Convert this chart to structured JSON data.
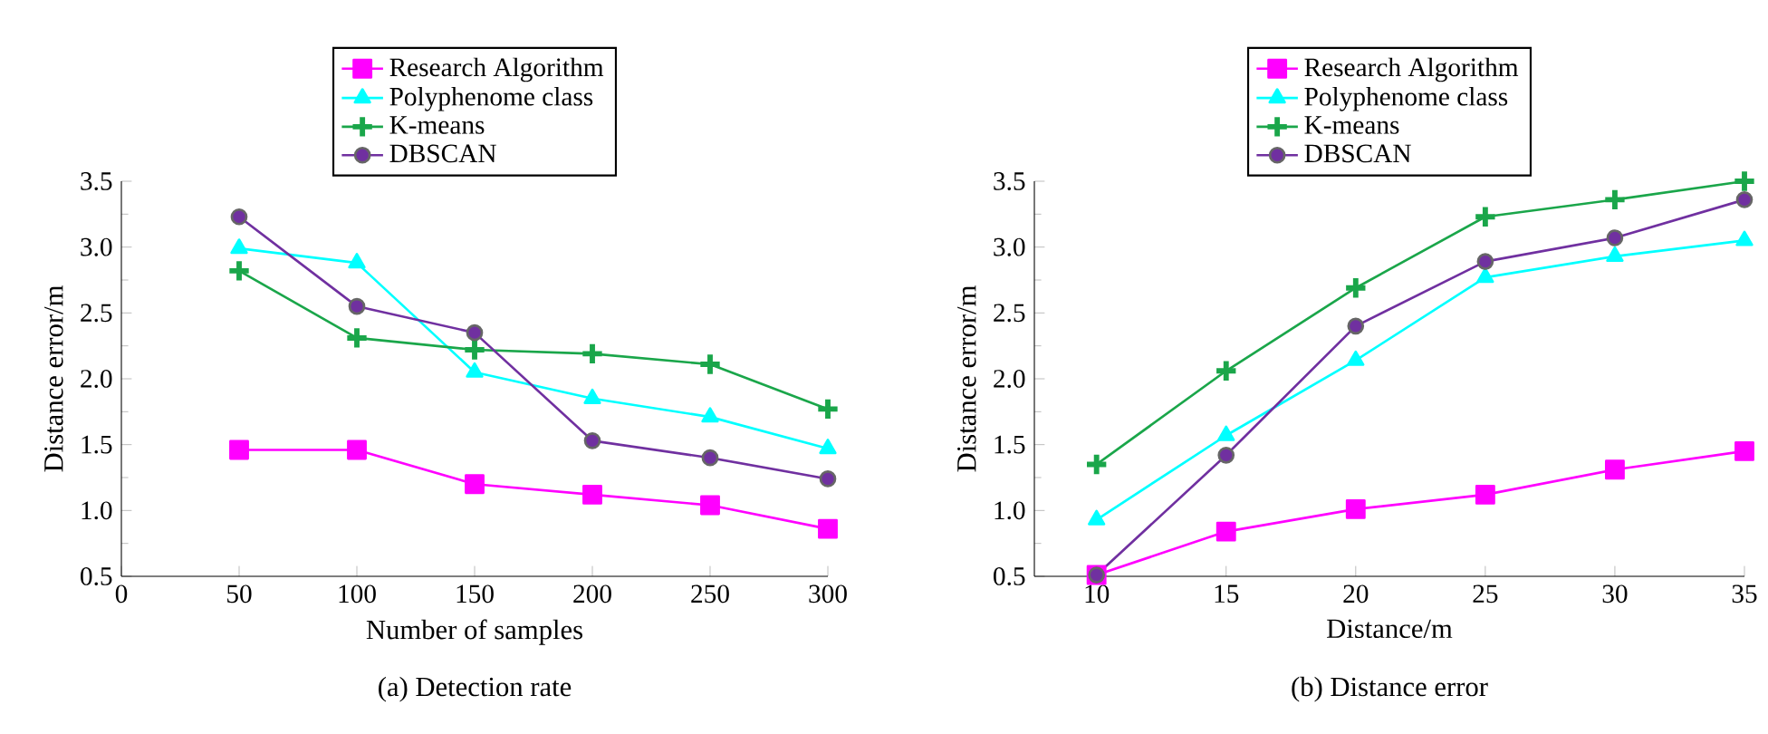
{
  "chart_data": [
    {
      "type": "line",
      "title": "(a) Detection rate",
      "xlabel": "Number of samples",
      "ylabel": "Distance error/m",
      "x": [
        50,
        100,
        150,
        200,
        250,
        300
      ],
      "xlim": [
        0,
        300
      ],
      "xticks": [
        0,
        50,
        100,
        150,
        200,
        250,
        300
      ],
      "ylim": [
        0.5,
        3.5
      ],
      "yticks": [
        0.5,
        {
          "value": 1,
          "label": "1.0"
        },
        1.5,
        {
          "value": 2,
          "label": "2.0"
        },
        2.5,
        {
          "value": 3,
          "label": "3.0"
        },
        3.5
      ],
      "grid": false,
      "legend": "top",
      "series": [
        {
          "name": "Research Algorithm",
          "color": "#ff00ff",
          "marker": "square",
          "values": [
            1.46,
            1.46,
            1.2,
            1.12,
            1.04,
            0.86
          ]
        },
        {
          "name": "Polyphenome class",
          "color": "#00ffff",
          "marker": "triangle",
          "values": [
            2.99,
            2.88,
            2.05,
            1.85,
            1.71,
            1.47
          ]
        },
        {
          "name": "K-means",
          "color": "#1aa64a",
          "marker": "cross",
          "values": [
            2.82,
            2.31,
            2.22,
            2.19,
            2.11,
            1.77
          ]
        },
        {
          "name": "DBSCAN",
          "color": "#7030a0",
          "marker": "circle",
          "values": [
            3.23,
            2.55,
            2.35,
            1.53,
            1.4,
            1.24
          ]
        }
      ]
    },
    {
      "type": "line",
      "title": "(b) Distance error",
      "xlabel": "Distance/m",
      "ylabel": "Distance error/m",
      "x": [
        10,
        15,
        20,
        25,
        30,
        35
      ],
      "xlim": [
        7.6,
        35
      ],
      "xticks": [
        10,
        15,
        20,
        25,
        30,
        35
      ],
      "ylim": [
        0.5,
        3.5
      ],
      "yticks": [
        0.5,
        {
          "value": 1,
          "label": "1.0"
        },
        1.5,
        {
          "value": 2,
          "label": "2.0"
        },
        2.5,
        {
          "value": 3,
          "label": "3.0"
        },
        3.5
      ],
      "grid": false,
      "legend": "top",
      "series": [
        {
          "name": "Research Algorithm",
          "color": "#ff00ff",
          "marker": "square",
          "values": [
            0.51,
            0.84,
            1.01,
            1.12,
            1.31,
            1.45
          ]
        },
        {
          "name": "Polyphenome class",
          "color": "#00ffff",
          "marker": "triangle",
          "values": [
            0.93,
            1.57,
            2.14,
            2.77,
            2.93,
            3.05
          ]
        },
        {
          "name": "K-means",
          "color": "#1aa64a",
          "marker": "cross",
          "values": [
            1.35,
            2.06,
            2.69,
            3.23,
            3.36,
            3.5
          ]
        },
        {
          "name": "DBSCAN",
          "color": "#7030a0",
          "marker": "circle",
          "values": [
            0.51,
            1.42,
            2.4,
            2.89,
            3.07,
            3.36
          ]
        }
      ]
    }
  ]
}
